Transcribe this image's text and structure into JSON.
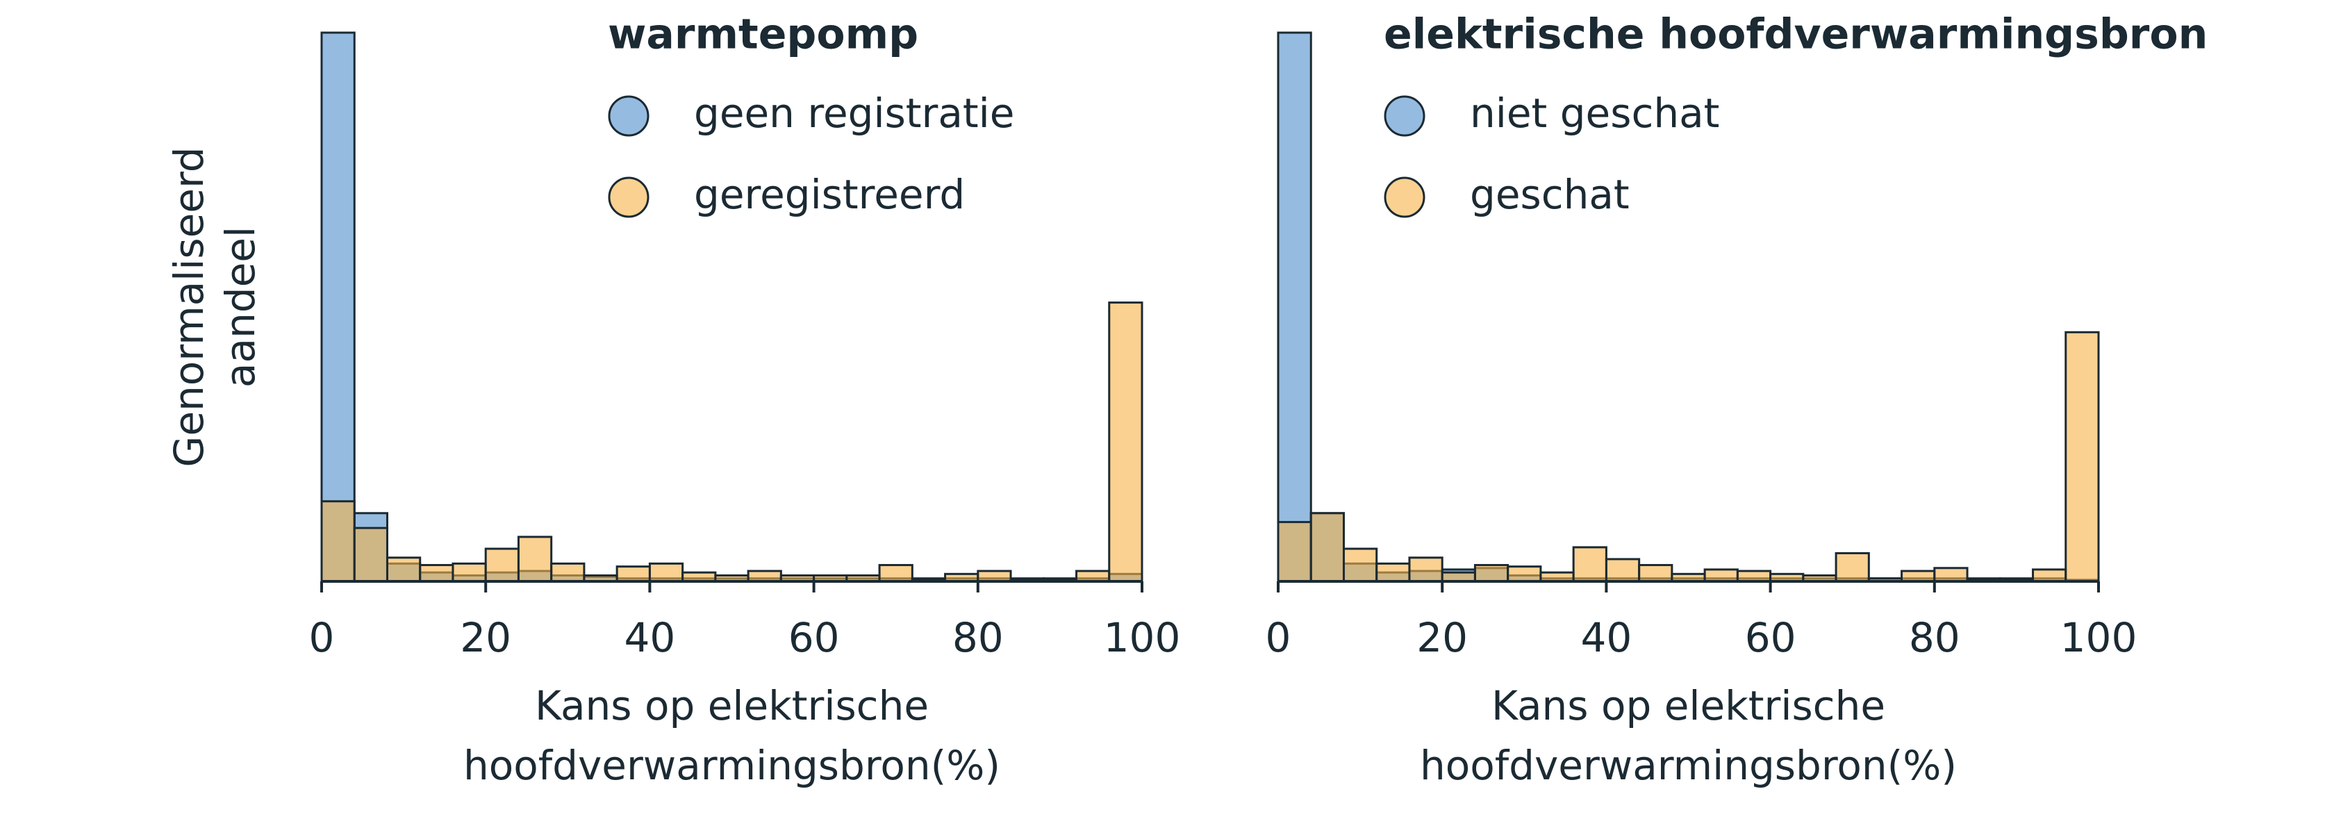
{
  "chart_data": [
    {
      "type": "histogram",
      "legend_title": "warmtepomp",
      "x_label": [
        "Kans op elektrische",
        "hoofdverwarmingsbron(%)"
      ],
      "y_label": [
        "Genormaliseerd",
        "aandeel"
      ],
      "bins": [
        0,
        4,
        8,
        12,
        16,
        20,
        24,
        28,
        32,
        36,
        40,
        44,
        48,
        52,
        56,
        60,
        64,
        68,
        72,
        76,
        80,
        84,
        88,
        92,
        96,
        100
      ],
      "xlim": [
        0,
        100
      ],
      "xticks": [
        0,
        20,
        40,
        60,
        80,
        100
      ],
      "ylim": [
        0,
        370
      ],
      "series": [
        {
          "name": "geen registratie",
          "color": "#4f8fcc",
          "values": [
            370,
            46,
            12,
            6,
            4,
            6,
            7,
            4,
            3,
            2,
            2,
            2,
            2,
            2,
            2,
            2,
            2,
            2,
            2,
            2,
            2,
            2,
            2,
            2,
            5
          ]
        },
        {
          "name": "geregistreerd",
          "color": "#f7b348",
          "values": [
            54,
            36,
            16,
            11,
            12,
            22,
            30,
            12,
            4,
            10,
            12,
            6,
            4,
            7,
            4,
            4,
            4,
            11,
            1,
            5,
            7,
            1,
            1,
            7,
            188
          ]
        }
      ]
    },
    {
      "type": "histogram",
      "legend_title": "elektrische hoofdverwarmingsbron",
      "x_label": [
        "Kans op elektrische",
        "hoofdverwarmingsbron(%)"
      ],
      "bins": [
        0,
        4,
        8,
        12,
        16,
        20,
        24,
        28,
        32,
        36,
        40,
        44,
        48,
        52,
        56,
        60,
        64,
        68,
        72,
        76,
        80,
        84,
        88,
        92,
        96,
        100
      ],
      "xlim": [
        0,
        100
      ],
      "xticks": [
        0,
        20,
        40,
        60,
        80,
        100
      ],
      "ylim": [
        0,
        370
      ],
      "series": [
        {
          "name": "niet geschat",
          "color": "#4f8fcc",
          "values": [
            370,
            46,
            12,
            6,
            7,
            8,
            9,
            4,
            2,
            2,
            2,
            2,
            2,
            2,
            2,
            2,
            2,
            2,
            2,
            2,
            2,
            2,
            2,
            2,
            1
          ]
        },
        {
          "name": "geschat",
          "color": "#f7b348",
          "values": [
            40,
            46,
            22,
            12,
            16,
            6,
            11,
            10,
            6,
            23,
            15,
            11,
            5,
            8,
            7,
            5,
            4,
            19,
            2,
            7,
            9,
            1,
            1,
            8,
            168
          ]
        }
      ]
    }
  ]
}
